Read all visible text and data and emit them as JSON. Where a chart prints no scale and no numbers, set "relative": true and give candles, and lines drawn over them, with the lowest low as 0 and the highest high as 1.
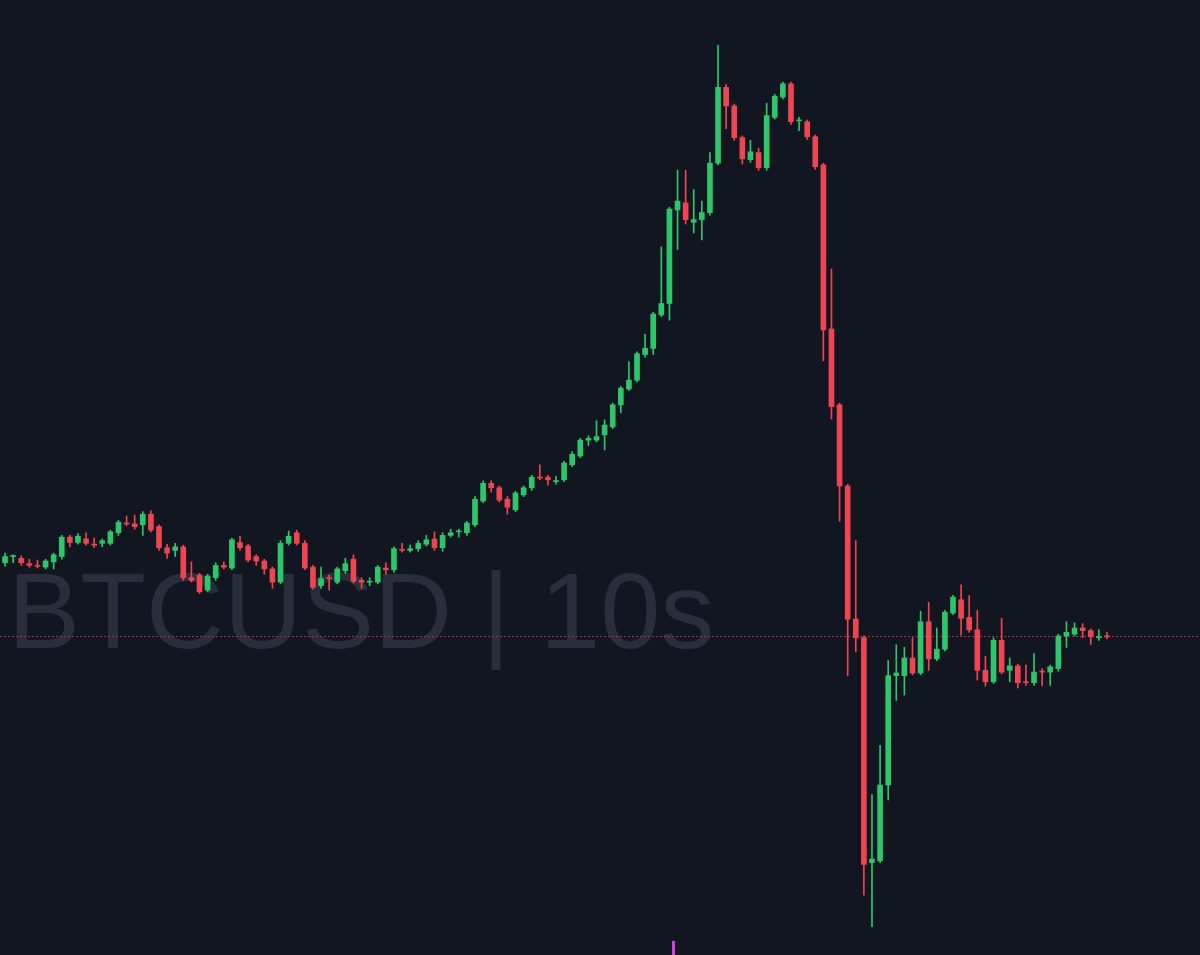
{
  "chart_data": {
    "type": "candlestick",
    "title": "BTCUSD | 10s",
    "relative": true,
    "tick_labels": false,
    "categories": [
      null,
      null,
      null,
      null,
      null,
      null,
      null,
      null,
      null,
      null,
      null,
      null,
      null,
      null,
      null,
      null,
      null,
      null,
      null,
      null,
      null,
      null,
      null,
      null,
      null,
      null,
      null,
      null,
      null,
      null,
      null,
      null,
      null,
      null,
      null,
      null,
      null,
      null,
      null,
      null,
      null,
      null,
      null,
      null,
      null,
      null,
      null,
      null,
      null,
      null,
      null,
      null,
      null,
      null,
      null,
      null,
      null,
      null,
      null,
      null,
      null,
      null,
      null,
      null,
      null,
      null,
      null,
      null,
      null,
      null,
      null,
      null,
      null,
      null,
      null,
      null,
      null,
      null,
      null,
      null,
      null,
      null,
      null,
      null,
      null,
      null,
      null,
      null,
      null,
      null,
      null,
      null,
      null,
      null,
      null,
      null,
      null,
      null,
      null,
      null,
      null,
      null,
      null,
      null,
      null,
      null,
      null,
      null,
      null,
      null,
      null,
      null,
      null,
      null,
      null,
      null,
      null,
      null,
      null,
      null,
      null,
      null,
      null,
      null,
      null,
      null,
      null,
      null,
      null,
      null,
      null,
      null,
      null,
      null,
      null,
      null,
      null
    ],
    "ohlc": [
      [
        0.413,
        0.424,
        0.409,
        0.42
      ],
      [
        0.42,
        0.422,
        0.413,
        0.421
      ],
      [
        0.418,
        0.421,
        0.41,
        0.413
      ],
      [
        0.412,
        0.417,
        0.408,
        0.41
      ],
      [
        0.41,
        0.416,
        0.407,
        0.409
      ],
      [
        0.408,
        0.417,
        0.406,
        0.415
      ],
      [
        0.414,
        0.424,
        0.406,
        0.422
      ],
      [
        0.42,
        0.444,
        0.417,
        0.442
      ],
      [
        0.442,
        0.444,
        0.431,
        0.436
      ],
      [
        0.436,
        0.446,
        0.434,
        0.443
      ],
      [
        0.44,
        0.447,
        0.433,
        0.435
      ],
      [
        0.433,
        0.441,
        0.43,
        0.433
      ],
      [
        0.435,
        0.44,
        0.431,
        0.438
      ],
      [
        0.435,
        0.45,
        0.433,
        0.448
      ],
      [
        0.447,
        0.461,
        0.444,
        0.459
      ],
      [
        0.458,
        0.466,
        0.455,
        0.457
      ],
      [
        0.457,
        0.467,
        0.451,
        0.454
      ],
      [
        0.456,
        0.471,
        0.444,
        0.468
      ],
      [
        0.468,
        0.472,
        0.448,
        0.45
      ],
      [
        0.454,
        0.456,
        0.427,
        0.43
      ],
      [
        0.43,
        0.434,
        0.418,
        0.424
      ],
      [
        0.427,
        0.435,
        0.42,
        0.431
      ],
      [
        0.431,
        0.433,
        0.393,
        0.396
      ],
      [
        0.396,
        0.414,
        0.391,
        0.393
      ],
      [
        0.399,
        0.401,
        0.378,
        0.38
      ],
      [
        0.382,
        0.4,
        0.38,
        0.398
      ],
      [
        0.396,
        0.413,
        0.393,
        0.41
      ],
      [
        0.41,
        0.414,
        0.406,
        0.408
      ],
      [
        0.407,
        0.441,
        0.405,
        0.439
      ],
      [
        0.436,
        0.443,
        0.427,
        0.43
      ],
      [
        0.432,
        0.434,
        0.414,
        0.416
      ],
      [
        0.42,
        0.422,
        0.41,
        0.415
      ],
      [
        0.415,
        0.417,
        0.4,
        0.406
      ],
      [
        0.406,
        0.408,
        0.384,
        0.391
      ],
      [
        0.391,
        0.438,
        0.389,
        0.435
      ],
      [
        0.435,
        0.449,
        0.433,
        0.443
      ],
      [
        0.447,
        0.45,
        0.433,
        0.435
      ],
      [
        0.435,
        0.438,
        0.405,
        0.407
      ],
      [
        0.408,
        0.41,
        0.383,
        0.385
      ],
      [
        0.387,
        0.408,
        0.384,
        0.395
      ],
      [
        0.396,
        0.399,
        0.382,
        0.395
      ],
      [
        0.391,
        0.408,
        0.389,
        0.406
      ],
      [
        0.404,
        0.418,
        0.401,
        0.412
      ],
      [
        0.417,
        0.422,
        0.39,
        0.392
      ],
      [
        0.393,
        0.396,
        0.384,
        0.391
      ],
      [
        0.391,
        0.396,
        0.387,
        0.392
      ],
      [
        0.391,
        0.41,
        0.389,
        0.408
      ],
      [
        0.407,
        0.413,
        0.4,
        0.405
      ],
      [
        0.405,
        0.431,
        0.402,
        0.429
      ],
      [
        0.427,
        0.435,
        0.425,
        0.427
      ],
      [
        0.427,
        0.433,
        0.425,
        0.429
      ],
      [
        0.429,
        0.438,
        0.426,
        0.435
      ],
      [
        0.434,
        0.444,
        0.432,
        0.439
      ],
      [
        0.44,
        0.448,
        0.427,
        0.43
      ],
      [
        0.43,
        0.447,
        0.426,
        0.444
      ],
      [
        0.444,
        0.451,
        0.442,
        0.447
      ],
      [
        0.448,
        0.451,
        0.442,
        0.449
      ],
      [
        0.447,
        0.46,
        0.444,
        0.458
      ],
      [
        0.456,
        0.488,
        0.454,
        0.485
      ],
      [
        0.483,
        0.506,
        0.481,
        0.503
      ],
      [
        0.503,
        0.506,
        0.493,
        0.498
      ],
      [
        0.498,
        0.5,
        0.482,
        0.484
      ],
      [
        0.485,
        0.488,
        0.468,
        0.476
      ],
      [
        0.473,
        0.494,
        0.471,
        0.492
      ],
      [
        0.49,
        0.5,
        0.488,
        0.498
      ],
      [
        0.498,
        0.512,
        0.495,
        0.51
      ],
      [
        0.509,
        0.524,
        0.507,
        0.509
      ],
      [
        0.51,
        0.512,
        0.501,
        0.507
      ],
      [
        0.505,
        0.511,
        0.502,
        0.506
      ],
      [
        0.507,
        0.528,
        0.505,
        0.526
      ],
      [
        0.524,
        0.539,
        0.522,
        0.536
      ],
      [
        0.534,
        0.554,
        0.532,
        0.552
      ],
      [
        0.552,
        0.557,
        0.546,
        0.554
      ],
      [
        0.552,
        0.574,
        0.55,
        0.556
      ],
      [
        0.558,
        0.575,
        0.541,
        0.569
      ],
      [
        0.567,
        0.594,
        0.565,
        0.592
      ],
      [
        0.592,
        0.613,
        0.583,
        0.611
      ],
      [
        0.61,
        0.641,
        0.608,
        0.62
      ],
      [
        0.62,
        0.652,
        0.618,
        0.65
      ],
      [
        0.649,
        0.672,
        0.646,
        0.656
      ],
      [
        0.656,
        0.697,
        0.649,
        0.695
      ],
      [
        0.694,
        0.771,
        0.692,
        0.707
      ],
      [
        0.707,
        0.816,
        0.688,
        0.814
      ],
      [
        0.813,
        0.858,
        0.768,
        0.823
      ],
      [
        0.821,
        0.858,
        0.797,
        0.802
      ],
      [
        0.799,
        0.836,
        0.787,
        0.802
      ],
      [
        0.802,
        0.823,
        0.779,
        0.81
      ],
      [
        0.81,
        0.878,
        0.807,
        0.866
      ],
      [
        0.866,
        1,
        0.864,
        0.952
      ],
      [
        0.952,
        0.955,
        0.905,
        0.931
      ],
      [
        0.931,
        0.933,
        0.892,
        0.895
      ],
      [
        0.895,
        0.897,
        0.865,
        0.871
      ],
      [
        0.87,
        0.892,
        0.867,
        0.879
      ],
      [
        0.878,
        0.883,
        0.858,
        0.861
      ],
      [
        0.861,
        0.934,
        0.858,
        0.92
      ],
      [
        0.918,
        0.944,
        0.916,
        0.942
      ],
      [
        0.941,
        0.958,
        0.939,
        0.956
      ],
      [
        0.956,
        0.958,
        0.91,
        0.913
      ],
      [
        0.914,
        0.918,
        0.903,
        0.915
      ],
      [
        0.913,
        0.915,
        0.893,
        0.896
      ],
      [
        0.896,
        0.898,
        0.859,
        0.862
      ],
      [
        0.864,
        0.866,
        0.642,
        0.677
      ],
      [
        0.678,
        0.746,
        0.576,
        0.59
      ],
      [
        0.592,
        0.594,
        0.46,
        0.5
      ],
      [
        0.5,
        0.502,
        0.285,
        0.349
      ],
      [
        0.349,
        0.438,
        0.312,
        0.328
      ],
      [
        0.328,
        0.33,
        0.036,
        0.071
      ],
      [
        0.073,
        0.15,
        0,
        0.077
      ],
      [
        0.075,
        0.206,
        0.073,
        0.161
      ],
      [
        0.161,
        0.302,
        0.144,
        0.285
      ],
      [
        0.285,
        0.32,
        0.257,
        0.288
      ],
      [
        0.285,
        0.317,
        0.263,
        0.305
      ],
      [
        0.305,
        0.328,
        0.286,
        0.288
      ],
      [
        0.288,
        0.358,
        0.286,
        0.346
      ],
      [
        0.346,
        0.368,
        0.291,
        0.304
      ],
      [
        0.304,
        0.339,
        0.302,
        0.315
      ],
      [
        0.315,
        0.359,
        0.313,
        0.357
      ],
      [
        0.356,
        0.376,
        0.354,
        0.374
      ],
      [
        0.371,
        0.388,
        0.331,
        0.35
      ],
      [
        0.351,
        0.376,
        0.334,
        0.337
      ],
      [
        0.337,
        0.359,
        0.28,
        0.291
      ],
      [
        0.291,
        0.307,
        0.273,
        0.278
      ],
      [
        0.278,
        0.328,
        0.276,
        0.325
      ],
      [
        0.325,
        0.35,
        0.287,
        0.289
      ],
      [
        0.291,
        0.305,
        0.278,
        0.296
      ],
      [
        0.296,
        0.298,
        0.271,
        0.277
      ],
      [
        0.277,
        0.297,
        0.274,
        0.277
      ],
      [
        0.277,
        0.31,
        0.274,
        0.289
      ],
      [
        0.29,
        0.293,
        0.274,
        0.289
      ],
      [
        0.289,
        0.297,
        0.274,
        0.295
      ],
      [
        0.293,
        0.332,
        0.29,
        0.33
      ],
      [
        0.33,
        0.346,
        0.317,
        0.334
      ],
      [
        0.332,
        0.345,
        0.33,
        0.339
      ],
      [
        0.339,
        0.344,
        0.328,
        0.336
      ],
      [
        0.336,
        0.338,
        0.32,
        0.329
      ],
      [
        0.328,
        0.337,
        0.325,
        0.329
      ],
      [
        0.33,
        0.334,
        0.327,
        0.329
      ]
    ],
    "colors": [
      "#2ec66a",
      "#2ec66a",
      "#ef4452",
      "#ef4452",
      "#ef4452",
      "#2ec66a",
      "#2ec66a",
      "#2ec66a",
      "#ef4452",
      "#2ec66a",
      "#ef4452",
      "#ef4452",
      "#2ec66a",
      "#2ec66a",
      "#2ec66a",
      "#ef4452",
      "#ef4452",
      "#2ec66a",
      "#ef4452",
      "#ef4452",
      "#ef4452",
      "#2ec66a",
      "#ef4452",
      "#ef4452",
      "#ef4452",
      "#2ec66a",
      "#2ec66a",
      "#ef4452",
      "#2ec66a",
      "#ef4452",
      "#ef4452",
      "#ef4452",
      "#ef4452",
      "#ef4452",
      "#2ec66a",
      "#2ec66a",
      "#ef4452",
      "#ef4452",
      "#ef4452",
      "#2ec66a",
      "#ef4452",
      "#2ec66a",
      "#2ec66a",
      "#ef4452",
      "#ef4452",
      "#2ec66a",
      "#2ec66a",
      "#ef4452",
      "#2ec66a",
      "#ef4452",
      "#2ec66a",
      "#2ec66a",
      "#2ec66a",
      "#ef4452",
      "#2ec66a",
      "#2ec66a",
      "#2ec66a",
      "#2ec66a",
      "#2ec66a",
      "#2ec66a",
      "#ef4452",
      "#ef4452",
      "#ef4452",
      "#2ec66a",
      "#2ec66a",
      "#2ec66a",
      "#ef4452",
      "#ef4452",
      "#2ec66a",
      "#2ec66a",
      "#2ec66a",
      "#2ec66a",
      "#2ec66a",
      "#2ec66a",
      "#2ec66a",
      "#2ec66a",
      "#2ec66a",
      "#2ec66a",
      "#2ec66a",
      "#2ec66a",
      "#2ec66a",
      "#2ec66a",
      "#2ec66a",
      "#2ec66a",
      "#ef4452",
      "#2ec66a",
      "#2ec66a",
      "#2ec66a",
      "#2ec66a",
      "#ef4452",
      "#ef4452",
      "#ef4452",
      "#2ec66a",
      "#ef4452",
      "#2ec66a",
      "#2ec66a",
      "#2ec66a",
      "#ef4452",
      "#2ec66a",
      "#ef4452",
      "#ef4452",
      "#ef4452",
      "#ef4452",
      "#ef4452",
      "#ef4452",
      "#ef4452",
      "#ef4452",
      "#2ec66a",
      "#2ec66a",
      "#2ec66a",
      "#2ec66a",
      "#2ec66a",
      "#ef4452",
      "#2ec66a",
      "#ef4452",
      "#2ec66a",
      "#2ec66a",
      "#2ec66a",
      "#ef4452",
      "#ef4452",
      "#ef4452",
      "#ef4452",
      "#2ec66a",
      "#ef4452",
      "#2ec66a",
      "#ef4452",
      "#ef4452",
      "#2ec66a",
      "#ef4452",
      "#2ec66a",
      "#2ec66a",
      "#2ec66a",
      "#2ec66a",
      "#ef4452",
      "#ef4452",
      "#2ec66a",
      "#ef4452"
    ],
    "ref_lines": [
      {
        "axis": "y",
        "value": 0.33,
        "color": "#a8323d",
        "line_style": "dotted"
      }
    ]
  }
}
